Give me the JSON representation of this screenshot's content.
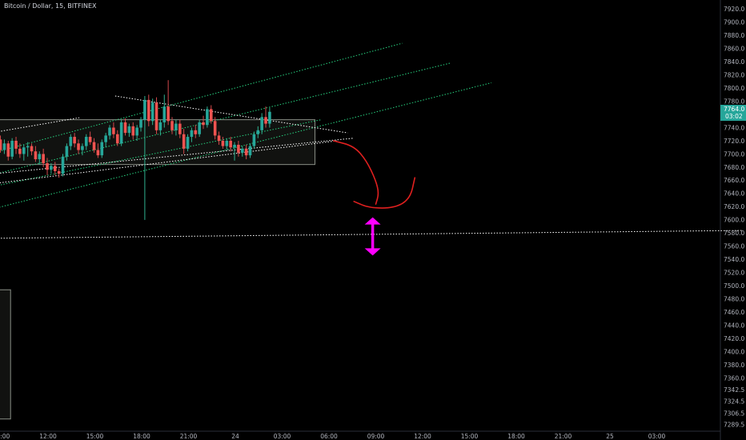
{
  "header": {
    "symbol_label": "Bitcoin / Dollar, 15, BITFINEX"
  },
  "colors": {
    "background": "#000000",
    "up": "#26a69a",
    "down": "#ef5350",
    "wick_up": "#2fb290",
    "wick_down": "#d2484b",
    "box": "#8a8f86",
    "trend_green": "#27d17f",
    "trend_white": "#ffffff",
    "drawing_red": "#e0201f",
    "arrow_magenta": "#ff00ff",
    "price_tag": "#26a69a"
  },
  "chart_data": {
    "type": "candlestick",
    "title": "Bitcoin / Dollar, 15, BITFINEX",
    "ylim": [
      7281,
      7928
    ],
    "ytick_labels": [
      "7920.0",
      "7900.0",
      "7880.0",
      "7860.0",
      "7840.0",
      "7820.0",
      "7800.0",
      "7780.0",
      "7760.0",
      "7740.0",
      "7720.0",
      "7700.0",
      "7680.0",
      "7660.0",
      "7640.0",
      "7620.0",
      "7600.0",
      "7580.0",
      "7560.0",
      "7540.0",
      "7520.0",
      "7500.0",
      "7480.0",
      "7460.0",
      "7440.0",
      "7420.0",
      "7400.0",
      "7380.0",
      "7360.0",
      "7342.5",
      "7324.5",
      "7306.5",
      "7289.5"
    ],
    "ytick_values": [
      7920,
      7900,
      7880,
      7860,
      7840,
      7820,
      7800,
      7780,
      7760,
      7740,
      7720,
      7700,
      7680,
      7660,
      7640,
      7620,
      7600,
      7580,
      7560,
      7540,
      7520,
      7500,
      7480,
      7460,
      7440,
      7420,
      7400,
      7380,
      7360,
      7342.5,
      7324.5,
      7306.5,
      7289.5
    ],
    "xtick_labels": [
      "06:00",
      "09:00",
      "12:00",
      "15:00",
      "18:00",
      "21:00",
      "24",
      "03:00",
      "06:00",
      "09:00",
      "12:00",
      "15:00",
      "18:00",
      "21:00",
      "25",
      "03:00"
    ],
    "xtick_hours": [
      6,
      9,
      12,
      15,
      18,
      21,
      24,
      27,
      30,
      33,
      36,
      39,
      42,
      45,
      48,
      51
    ],
    "last_price": "7764.0",
    "countdown": "03:02",
    "candles": [
      {
        "t": 4.2,
        "o": 7690,
        "h": 7700,
        "l": 7660,
        "c": 7676
      },
      {
        "t": 4.45,
        "o": 7676,
        "h": 7682,
        "l": 7654,
        "c": 7660
      },
      {
        "t": 4.7,
        "o": 7660,
        "h": 7668,
        "l": 7642,
        "c": 7648
      },
      {
        "t": 4.95,
        "o": 7648,
        "h": 7660,
        "l": 7636,
        "c": 7656
      },
      {
        "t": 5.2,
        "o": 7656,
        "h": 7665,
        "l": 7644,
        "c": 7650
      },
      {
        "t": 5.45,
        "o": 7650,
        "h": 7668,
        "l": 7646,
        "c": 7664
      },
      {
        "t": 5.7,
        "o": 7664,
        "h": 7670,
        "l": 7652,
        "c": 7658
      },
      {
        "t": 5.95,
        "o": 7658,
        "h": 7676,
        "l": 7655,
        "c": 7672
      },
      {
        "t": 6.2,
        "o": 7672,
        "h": 7684,
        "l": 7666,
        "c": 7678
      },
      {
        "t": 6.45,
        "o": 7678,
        "h": 7690,
        "l": 7660,
        "c": 7664
      },
      {
        "t": 6.7,
        "o": 7664,
        "h": 7675,
        "l": 7655,
        "c": 7670
      },
      {
        "t": 6.95,
        "o": 7670,
        "h": 7696,
        "l": 7666,
        "c": 7690
      },
      {
        "t": 7.2,
        "o": 7672,
        "h": 7700,
        "l": 7670,
        "c": 7696
      },
      {
        "t": 7.45,
        "o": 7696,
        "h": 7750,
        "l": 7692,
        "c": 7748
      },
      {
        "t": 7.7,
        "o": 7748,
        "h": 7810,
        "l": 7740,
        "c": 7756
      },
      {
        "t": 7.95,
        "o": 7756,
        "h": 7762,
        "l": 7728,
        "c": 7736
      },
      {
        "t": 8.2,
        "o": 7736,
        "h": 7752,
        "l": 7730,
        "c": 7750
      },
      {
        "t": 8.45,
        "o": 7750,
        "h": 7758,
        "l": 7734,
        "c": 7740
      },
      {
        "t": 8.7,
        "o": 7740,
        "h": 7746,
        "l": 7718,
        "c": 7722
      },
      {
        "t": 8.95,
        "o": 7722,
        "h": 7728,
        "l": 7702,
        "c": 7706
      },
      {
        "t": 9.2,
        "o": 7706,
        "h": 7722,
        "l": 7700,
        "c": 7716
      },
      {
        "t": 9.45,
        "o": 7716,
        "h": 7720,
        "l": 7690,
        "c": 7696
      },
      {
        "t": 9.7,
        "o": 7696,
        "h": 7724,
        "l": 7692,
        "c": 7720
      },
      {
        "t": 9.95,
        "o": 7720,
        "h": 7726,
        "l": 7700,
        "c": 7708
      },
      {
        "t": 10.2,
        "o": 7708,
        "h": 7716,
        "l": 7694,
        "c": 7700
      },
      {
        "t": 10.45,
        "o": 7700,
        "h": 7714,
        "l": 7690,
        "c": 7710
      },
      {
        "t": 10.7,
        "o": 7710,
        "h": 7718,
        "l": 7696,
        "c": 7712
      },
      {
        "t": 10.95,
        "o": 7712,
        "h": 7716,
        "l": 7698,
        "c": 7704
      },
      {
        "t": 11.2,
        "o": 7704,
        "h": 7712,
        "l": 7688,
        "c": 7692
      },
      {
        "t": 11.45,
        "o": 7692,
        "h": 7704,
        "l": 7684,
        "c": 7700
      },
      {
        "t": 11.7,
        "o": 7700,
        "h": 7708,
        "l": 7680,
        "c": 7686
      },
      {
        "t": 11.95,
        "o": 7686,
        "h": 7694,
        "l": 7668,
        "c": 7676
      },
      {
        "t": 12.2,
        "o": 7676,
        "h": 7686,
        "l": 7670,
        "c": 7682
      },
      {
        "t": 12.45,
        "o": 7682,
        "h": 7688,
        "l": 7668,
        "c": 7674
      },
      {
        "t": 12.7,
        "o": 7674,
        "h": 7678,
        "l": 7664,
        "c": 7670
      },
      {
        "t": 12.95,
        "o": 7670,
        "h": 7700,
        "l": 7666,
        "c": 7696
      },
      {
        "t": 13.2,
        "o": 7696,
        "h": 7716,
        "l": 7690,
        "c": 7712
      },
      {
        "t": 13.45,
        "o": 7712,
        "h": 7730,
        "l": 7706,
        "c": 7726
      },
      {
        "t": 13.7,
        "o": 7726,
        "h": 7732,
        "l": 7710,
        "c": 7716
      },
      {
        "t": 13.95,
        "o": 7716,
        "h": 7722,
        "l": 7700,
        "c": 7706
      },
      {
        "t": 14.2,
        "o": 7706,
        "h": 7716,
        "l": 7698,
        "c": 7712
      },
      {
        "t": 14.45,
        "o": 7712,
        "h": 7730,
        "l": 7706,
        "c": 7726
      },
      {
        "t": 14.7,
        "o": 7726,
        "h": 7734,
        "l": 7714,
        "c": 7718
      },
      {
        "t": 14.95,
        "o": 7718,
        "h": 7724,
        "l": 7702,
        "c": 7706
      },
      {
        "t": 15.2,
        "o": 7706,
        "h": 7716,
        "l": 7694,
        "c": 7698
      },
      {
        "t": 15.45,
        "o": 7698,
        "h": 7722,
        "l": 7694,
        "c": 7718
      },
      {
        "t": 15.7,
        "o": 7718,
        "h": 7732,
        "l": 7710,
        "c": 7728
      },
      {
        "t": 15.95,
        "o": 7728,
        "h": 7744,
        "l": 7722,
        "c": 7740
      },
      {
        "t": 16.2,
        "o": 7740,
        "h": 7748,
        "l": 7724,
        "c": 7730
      },
      {
        "t": 16.45,
        "o": 7730,
        "h": 7736,
        "l": 7712,
        "c": 7716
      },
      {
        "t": 16.7,
        "o": 7716,
        "h": 7752,
        "l": 7712,
        "c": 7748
      },
      {
        "t": 16.95,
        "o": 7748,
        "h": 7754,
        "l": 7728,
        "c": 7732
      },
      {
        "t": 17.2,
        "o": 7732,
        "h": 7746,
        "l": 7726,
        "c": 7742
      },
      {
        "t": 17.45,
        "o": 7742,
        "h": 7748,
        "l": 7722,
        "c": 7728
      },
      {
        "t": 17.7,
        "o": 7728,
        "h": 7744,
        "l": 7720,
        "c": 7740
      },
      {
        "t": 17.95,
        "o": 7740,
        "h": 7756,
        "l": 7734,
        "c": 7752
      },
      {
        "t": 18.2,
        "o": 7752,
        "h": 7788,
        "l": 7600,
        "c": 7782
      },
      {
        "t": 18.45,
        "o": 7782,
        "h": 7790,
        "l": 7742,
        "c": 7750
      },
      {
        "t": 18.7,
        "o": 7750,
        "h": 7784,
        "l": 7744,
        "c": 7778
      },
      {
        "t": 18.95,
        "o": 7778,
        "h": 7786,
        "l": 7730,
        "c": 7736
      },
      {
        "t": 19.2,
        "o": 7736,
        "h": 7752,
        "l": 7728,
        "c": 7748
      },
      {
        "t": 19.45,
        "o": 7748,
        "h": 7790,
        "l": 7740,
        "c": 7772
      },
      {
        "t": 19.7,
        "o": 7772,
        "h": 7812,
        "l": 7744,
        "c": 7750
      },
      {
        "t": 19.95,
        "o": 7750,
        "h": 7756,
        "l": 7730,
        "c": 7736
      },
      {
        "t": 20.2,
        "o": 7736,
        "h": 7752,
        "l": 7728,
        "c": 7746
      },
      {
        "t": 20.45,
        "o": 7746,
        "h": 7752,
        "l": 7724,
        "c": 7730
      },
      {
        "t": 20.7,
        "o": 7730,
        "h": 7738,
        "l": 7700,
        "c": 7708
      },
      {
        "t": 20.95,
        "o": 7708,
        "h": 7730,
        "l": 7704,
        "c": 7726
      },
      {
        "t": 21.2,
        "o": 7726,
        "h": 7740,
        "l": 7718,
        "c": 7736
      },
      {
        "t": 21.45,
        "o": 7736,
        "h": 7744,
        "l": 7724,
        "c": 7730
      },
      {
        "t": 21.7,
        "o": 7730,
        "h": 7752,
        "l": 7726,
        "c": 7748
      },
      {
        "t": 21.95,
        "o": 7748,
        "h": 7758,
        "l": 7738,
        "c": 7744
      },
      {
        "t": 22.2,
        "o": 7744,
        "h": 7772,
        "l": 7740,
        "c": 7768
      },
      {
        "t": 22.45,
        "o": 7768,
        "h": 7774,
        "l": 7746,
        "c": 7750
      },
      {
        "t": 22.7,
        "o": 7750,
        "h": 7756,
        "l": 7722,
        "c": 7728
      },
      {
        "t": 22.95,
        "o": 7728,
        "h": 7734,
        "l": 7714,
        "c": 7720
      },
      {
        "t": 23.2,
        "o": 7720,
        "h": 7726,
        "l": 7708,
        "c": 7712
      },
      {
        "t": 23.45,
        "o": 7712,
        "h": 7724,
        "l": 7706,
        "c": 7720
      },
      {
        "t": 23.7,
        "o": 7720,
        "h": 7726,
        "l": 7704,
        "c": 7710
      },
      {
        "t": 23.95,
        "o": 7710,
        "h": 7718,
        "l": 7690,
        "c": 7714
      },
      {
        "t": 24.2,
        "o": 7714,
        "h": 7720,
        "l": 7696,
        "c": 7702
      },
      {
        "t": 24.45,
        "o": 7702,
        "h": 7712,
        "l": 7696,
        "c": 7708
      },
      {
        "t": 24.7,
        "o": 7708,
        "h": 7714,
        "l": 7692,
        "c": 7698
      },
      {
        "t": 24.95,
        "o": 7698,
        "h": 7716,
        "l": 7694,
        "c": 7712
      },
      {
        "t": 25.2,
        "o": 7712,
        "h": 7734,
        "l": 7708,
        "c": 7730
      },
      {
        "t": 25.45,
        "o": 7730,
        "h": 7742,
        "l": 7724,
        "c": 7736
      },
      {
        "t": 25.7,
        "o": 7736,
        "h": 7762,
        "l": 7730,
        "c": 7756
      },
      {
        "t": 25.95,
        "o": 7756,
        "h": 7772,
        "l": 7740,
        "c": 7746
      },
      {
        "t": 26.2,
        "o": 7746,
        "h": 7770,
        "l": 7740,
        "c": 7764
      }
    ],
    "rectangles": [
      {
        "t1": 7.3,
        "t2": 29.1,
        "p1": 7752,
        "p2": 7684
      },
      {
        "t1": 0.0,
        "t2": 9.6,
        "p1": 7494,
        "p2": 7298
      }
    ],
    "green_trendlines": [
      {
        "t1": 0.0,
        "p1": 7648,
        "t2": 34.7,
        "p2": 7868
      },
      {
        "t1": 0.0,
        "p1": 7620,
        "t2": 37.8,
        "p2": 7838
      },
      {
        "t1": 0.0,
        "p1": 7566,
        "t2": 40.4,
        "p2": 7808
      },
      {
        "t1": 0.0,
        "p1": 7610,
        "t2": 29.5,
        "p2": 7752
      }
    ],
    "white_trendlines": [
      {
        "t1": 16.3,
        "p1": 7788,
        "t2": 31.2,
        "p2": 7732
      },
      {
        "t1": 0.0,
        "p1": 7570,
        "t2": 56.5,
        "p2": 7584
      },
      {
        "t1": 0.0,
        "p1": 7650,
        "t2": 31.6,
        "p2": 7724
      },
      {
        "t1": 0.0,
        "p1": 7630,
        "t2": 30.5,
        "p2": 7720
      },
      {
        "t1": 0.5,
        "p1": 7700,
        "t2": 14.0,
        "p2": 7755
      },
      {
        "t1": 0.8,
        "p1": 7708,
        "t2": 5.3,
        "p2": 7740
      }
    ],
    "annotations": [
      {
        "kind": "freehand_arrow",
        "color": "red",
        "points": [
          [
            30.3,
            7720
          ],
          [
            31.6,
            7712
          ],
          [
            32.4,
            7690
          ],
          [
            33.0,
            7660
          ],
          [
            33.2,
            7640
          ],
          [
            33.0,
            7624
          ]
        ]
      },
      {
        "kind": "freehand_hook",
        "color": "red",
        "points": [
          [
            31.6,
            7628
          ],
          [
            32.6,
            7618
          ],
          [
            34.2,
            7618
          ],
          [
            35.2,
            7632
          ],
          [
            35.5,
            7664
          ]
        ]
      },
      {
        "kind": "double_arrow",
        "color": "magenta",
        "t": 32.8,
        "p_top": 7604,
        "p_bottom": 7546
      }
    ]
  }
}
